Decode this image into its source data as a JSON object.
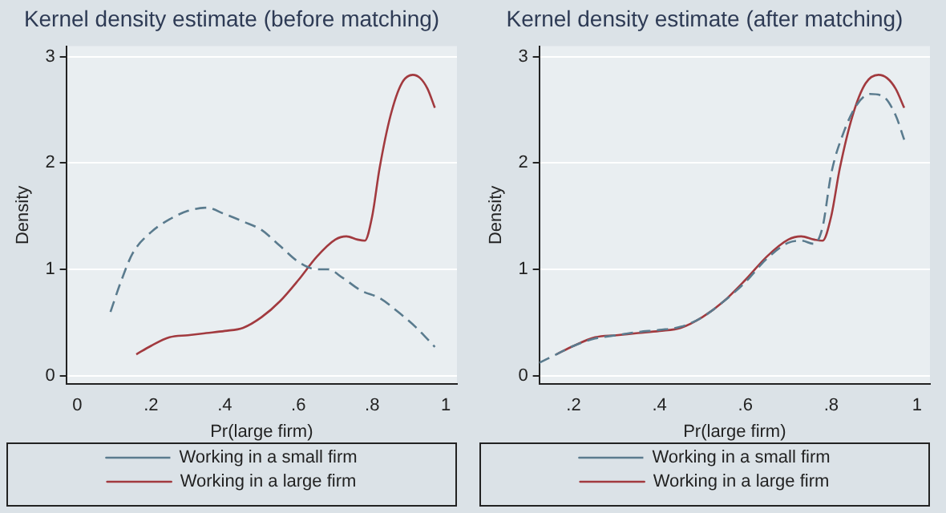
{
  "chart_data": [
    {
      "type": "line",
      "title": "Kernel density estimate (before matching)",
      "xlabel": "Pr(large firm)",
      "ylabel": "Density",
      "xlim": [
        -0.03,
        1.03
      ],
      "ylim": [
        -0.08,
        3.1
      ],
      "xticks": [
        {
          "value": 0,
          "label": "0"
        },
        {
          "value": 0.2,
          "label": ".2"
        },
        {
          "value": 0.4,
          "label": ".4"
        },
        {
          "value": 0.6,
          "label": ".6"
        },
        {
          "value": 0.8,
          "label": ".8"
        },
        {
          "value": 1,
          "label": "1"
        }
      ],
      "yticks": [
        0,
        1,
        2,
        3
      ],
      "grid": "y",
      "legend": "bottom",
      "marker": "none",
      "series": [
        {
          "name": "Working in a small firm",
          "color": "#5a7b8e",
          "line_style": "dashed",
          "x": [
            0.09,
            0.12,
            0.15,
            0.2,
            0.25,
            0.3,
            0.35,
            0.4,
            0.45,
            0.5,
            0.55,
            0.6,
            0.65,
            0.68,
            0.72,
            0.77,
            0.82,
            0.87,
            0.92,
            0.97
          ],
          "values": [
            0.6,
            0.9,
            1.15,
            1.35,
            1.47,
            1.55,
            1.58,
            1.52,
            1.45,
            1.37,
            1.22,
            1.07,
            1.0,
            1.0,
            0.92,
            0.8,
            0.73,
            0.6,
            0.45,
            0.27
          ]
        },
        {
          "name": "Working in a large firm",
          "color": "#a23a3f",
          "line_style": "solid",
          "x": [
            0.16,
            0.2,
            0.25,
            0.3,
            0.35,
            0.4,
            0.45,
            0.5,
            0.55,
            0.6,
            0.65,
            0.7,
            0.73,
            0.76,
            0.78,
            0.8,
            0.82,
            0.85,
            0.88,
            0.91,
            0.93,
            0.95,
            0.97
          ],
          "values": [
            0.2,
            0.28,
            0.36,
            0.38,
            0.4,
            0.42,
            0.45,
            0.55,
            0.7,
            0.9,
            1.12,
            1.28,
            1.31,
            1.28,
            1.27,
            1.5,
            1.95,
            2.45,
            2.75,
            2.83,
            2.8,
            2.7,
            2.52
          ]
        }
      ]
    },
    {
      "type": "line",
      "title": "Kernel density estimate (after matching)",
      "xlabel": "Pr(large firm)",
      "ylabel": "Density",
      "xlim": [
        0.12,
        1.03
      ],
      "ylim": [
        -0.08,
        3.1
      ],
      "xticks": [
        {
          "value": 0.2,
          "label": ".2"
        },
        {
          "value": 0.4,
          "label": ".4"
        },
        {
          "value": 0.6,
          "label": ".6"
        },
        {
          "value": 0.8,
          "label": ".8"
        },
        {
          "value": 1,
          "label": "1"
        }
      ],
      "yticks": [
        0,
        1,
        2,
        3
      ],
      "grid": "y",
      "legend": "bottom",
      "marker": "none",
      "series": [
        {
          "name": "Working in a small firm",
          "color": "#5a7b8e",
          "line_style": "dashed",
          "x": [
            0.12,
            0.16,
            0.2,
            0.25,
            0.3,
            0.35,
            0.4,
            0.45,
            0.5,
            0.55,
            0.6,
            0.65,
            0.7,
            0.73,
            0.76,
            0.78,
            0.8,
            0.83,
            0.86,
            0.89,
            0.92,
            0.95,
            0.97
          ],
          "values": [
            0.12,
            0.2,
            0.28,
            0.35,
            0.38,
            0.41,
            0.43,
            0.46,
            0.55,
            0.7,
            0.88,
            1.1,
            1.25,
            1.27,
            1.24,
            1.4,
            1.9,
            2.3,
            2.55,
            2.65,
            2.63,
            2.45,
            2.22
          ]
        },
        {
          "name": "Working in a large firm",
          "color": "#a23a3f",
          "line_style": "solid",
          "x": [
            0.16,
            0.2,
            0.25,
            0.3,
            0.35,
            0.4,
            0.45,
            0.5,
            0.55,
            0.6,
            0.65,
            0.7,
            0.73,
            0.76,
            0.78,
            0.8,
            0.82,
            0.85,
            0.88,
            0.91,
            0.93,
            0.95,
            0.97
          ],
          "values": [
            0.2,
            0.28,
            0.36,
            0.38,
            0.4,
            0.42,
            0.45,
            0.55,
            0.7,
            0.9,
            1.12,
            1.28,
            1.31,
            1.28,
            1.27,
            1.5,
            1.95,
            2.45,
            2.75,
            2.83,
            2.8,
            2.7,
            2.52
          ]
        }
      ]
    }
  ]
}
